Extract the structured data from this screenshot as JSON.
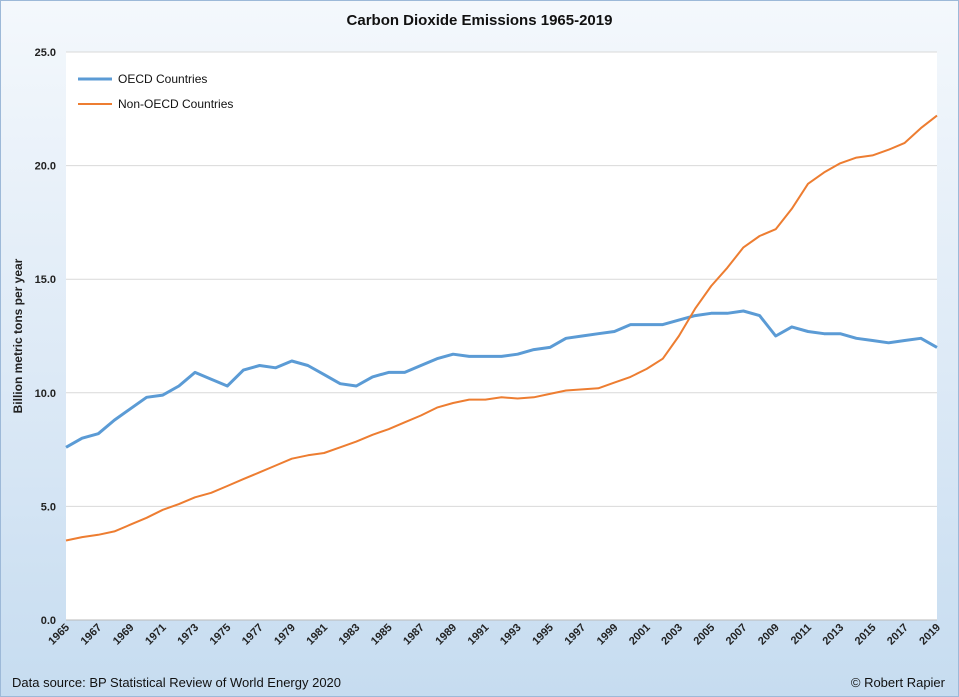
{
  "chart_data": {
    "type": "line",
    "title": "Carbon Dioxide Emissions 1965-2019",
    "xlabel": "",
    "ylabel": "Billion metric tons per year",
    "ylim": [
      0,
      25
    ],
    "yticks": [
      "0.0",
      "5.0",
      "10.0",
      "15.0",
      "20.0",
      "25.0"
    ],
    "xlim": [
      1965,
      2019
    ],
    "xtick_step": 2,
    "grid": "horizontal",
    "legend_position": "top-left",
    "x": [
      1965,
      1966,
      1967,
      1968,
      1969,
      1970,
      1971,
      1972,
      1973,
      1974,
      1975,
      1976,
      1977,
      1978,
      1979,
      1980,
      1981,
      1982,
      1983,
      1984,
      1985,
      1986,
      1987,
      1988,
      1989,
      1990,
      1991,
      1992,
      1993,
      1994,
      1995,
      1996,
      1997,
      1998,
      1999,
      2000,
      2001,
      2002,
      2003,
      2004,
      2005,
      2006,
      2007,
      2008,
      2009,
      2010,
      2011,
      2012,
      2013,
      2014,
      2015,
      2016,
      2017,
      2018,
      2019
    ],
    "series": [
      {
        "name": "OECD Countries",
        "color": "#5b9bd5",
        "values": [
          7.6,
          8.0,
          8.2,
          8.8,
          9.3,
          9.8,
          9.9,
          10.3,
          10.9,
          10.6,
          10.3,
          11.0,
          11.2,
          11.1,
          11.4,
          11.2,
          10.8,
          10.4,
          10.3,
          10.7,
          10.9,
          10.9,
          11.2,
          11.5,
          11.7,
          11.6,
          11.6,
          11.6,
          11.7,
          11.9,
          12.0,
          12.4,
          12.5,
          12.6,
          12.7,
          13.0,
          13.0,
          13.0,
          13.2,
          13.4,
          13.5,
          13.5,
          13.6,
          13.4,
          12.5,
          12.9,
          12.7,
          12.6,
          12.6,
          12.4,
          12.3,
          12.2,
          12.3,
          12.4,
          12.0
        ]
      },
      {
        "name": "Non-OECD Countries",
        "color": "#ed7d31",
        "values": [
          3.5,
          3.65,
          3.75,
          3.9,
          4.2,
          4.5,
          4.85,
          5.1,
          5.4,
          5.6,
          5.9,
          6.2,
          6.5,
          6.8,
          7.1,
          7.25,
          7.35,
          7.6,
          7.85,
          8.15,
          8.4,
          8.7,
          9.0,
          9.35,
          9.55,
          9.7,
          9.7,
          9.8,
          9.75,
          9.8,
          9.95,
          10.1,
          10.15,
          10.2,
          10.45,
          10.7,
          11.05,
          11.5,
          12.5,
          13.7,
          14.7,
          15.5,
          16.4,
          16.9,
          17.2,
          18.1,
          19.2,
          19.7,
          20.1,
          20.35,
          20.45,
          20.7,
          21.0,
          21.65,
          22.2
        ]
      }
    ]
  },
  "footer": {
    "source": "Data source: BP Statistical Review of World Energy 2020",
    "credit": "© Robert Rapier"
  }
}
